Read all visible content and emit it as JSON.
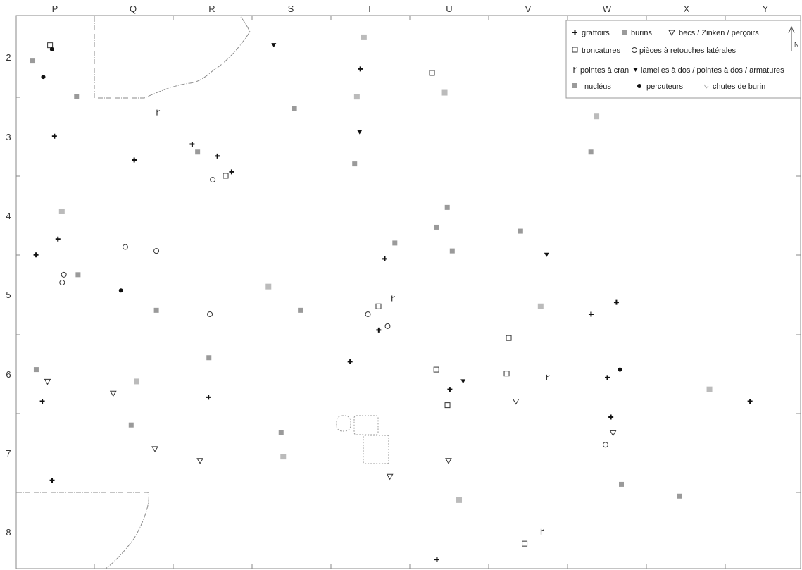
{
  "columns": [
    "P",
    "Q",
    "R",
    "S",
    "T",
    "U",
    "V",
    "W",
    "X",
    "Y"
  ],
  "rows": [
    "2",
    "3",
    "4",
    "5",
    "6",
    "7",
    "8"
  ],
  "colors": {
    "dark": "#111111",
    "gray": "#9a9a9a",
    "light": "#bbbbbb",
    "line": "#8a8a8a"
  },
  "legend": {
    "grattoirs": "grattoirs",
    "burins": "burins",
    "becs": "becs / Zinken / perçoirs",
    "troncatures": "troncatures",
    "retouches": "pièces à retouches latérales",
    "pointes": "pointes à cran",
    "lamelles": "lamelles à dos / pointes à dos  / armatures",
    "nucleus": "nucléus",
    "percuteurs": "percuteurs",
    "chutes": "chutes de burin",
    "north": "N"
  },
  "artifacts": [
    {
      "type": "grattoir",
      "col": "P",
      "row": 3.0
    },
    {
      "type": "grattoir",
      "col": "P",
      "row": 4.3
    },
    {
      "type": "grattoir",
      "col": "P",
      "row": 4.5
    },
    {
      "type": "grattoir",
      "col": "P",
      "row": 6.35
    },
    {
      "type": "grattoir",
      "col": "P",
      "row": 7.35
    },
    {
      "type": "grattoir",
      "col": "Q",
      "row": 3.3
    },
    {
      "type": "grattoir",
      "col": "R",
      "row": 3.1
    },
    {
      "type": "grattoir",
      "col": "R",
      "row": 3.45
    },
    {
      "type": "grattoir",
      "col": "R",
      "row": 3.25
    },
    {
      "type": "grattoir",
      "col": "R",
      "row": 6.3
    },
    {
      "type": "grattoir",
      "col": "T",
      "row": 2.15
    },
    {
      "type": "grattoir",
      "col": "T",
      "row": 4.55
    },
    {
      "type": "grattoir",
      "col": "T",
      "row": 5.45
    },
    {
      "type": "grattoir",
      "col": "T",
      "row": 5.85
    },
    {
      "type": "grattoir",
      "col": "U",
      "row": 6.2
    },
    {
      "type": "grattoir",
      "col": "U",
      "row": 8.35
    },
    {
      "type": "grattoir",
      "col": "W",
      "row": 5.1
    },
    {
      "type": "grattoir",
      "col": "W",
      "row": 5.25
    },
    {
      "type": "grattoir",
      "col": "W",
      "row": 6.55
    },
    {
      "type": "grattoir",
      "col": "W",
      "row": 6.05
    },
    {
      "type": "grattoir",
      "col": "Y",
      "row": 6.35
    },
    {
      "type": "burin",
      "col": "P",
      "row": 2.05
    },
    {
      "type": "burin",
      "col": "P",
      "row": 2.5
    },
    {
      "type": "burin",
      "col": "P",
      "row": 4.75
    },
    {
      "type": "burin",
      "col": "P",
      "row": 5.95
    },
    {
      "type": "burin",
      "col": "Q",
      "row": 6.65
    },
    {
      "type": "burin",
      "col": "Q",
      "row": 5.2
    },
    {
      "type": "burin",
      "col": "R",
      "row": 3.2
    },
    {
      "type": "burin",
      "col": "R",
      "row": 5.8
    },
    {
      "type": "burin",
      "col": "S",
      "row": 2.65
    },
    {
      "type": "burin",
      "col": "S",
      "row": 5.2
    },
    {
      "type": "burin",
      "col": "S",
      "row": 6.75
    },
    {
      "type": "burin",
      "col": "T",
      "row": 3.35
    },
    {
      "type": "burin",
      "col": "T",
      "row": 4.35
    },
    {
      "type": "burin",
      "col": "U",
      "row": 3.9
    },
    {
      "type": "burin",
      "col": "U",
      "row": 4.15
    },
    {
      "type": "burin",
      "col": "U",
      "row": 4.45
    },
    {
      "type": "burin",
      "col": "V",
      "row": 4.2
    },
    {
      "type": "burin",
      "col": "W",
      "row": 3.2
    },
    {
      "type": "burin",
      "col": "W",
      "row": 7.4
    },
    {
      "type": "burin",
      "col": "X",
      "row": 7.55
    },
    {
      "type": "becs",
      "col": "P",
      "row": 6.1
    },
    {
      "type": "becs",
      "col": "Q",
      "row": 6.25
    },
    {
      "type": "becs",
      "col": "Q",
      "row": 6.95
    },
    {
      "type": "becs",
      "col": "R",
      "row": 7.1
    },
    {
      "type": "becs",
      "col": "T",
      "row": 7.3
    },
    {
      "type": "becs",
      "col": "U",
      "row": 7.1
    },
    {
      "type": "becs",
      "col": "V",
      "row": 6.35
    },
    {
      "type": "becs",
      "col": "W",
      "row": 6.75
    },
    {
      "type": "troncature",
      "col": "P",
      "row": 1.85
    },
    {
      "type": "troncature",
      "col": "R",
      "row": 3.5
    },
    {
      "type": "troncature",
      "col": "T",
      "row": 5.15
    },
    {
      "type": "troncature",
      "col": "U",
      "row": 2.2
    },
    {
      "type": "troncature",
      "col": "U",
      "row": 5.95
    },
    {
      "type": "troncature",
      "col": "U",
      "row": 6.4
    },
    {
      "type": "troncature",
      "col": "V",
      "row": 5.55
    },
    {
      "type": "troncature",
      "col": "V",
      "row": 6.0
    },
    {
      "type": "troncature",
      "col": "V",
      "row": 8.15
    },
    {
      "type": "retouche",
      "col": "P",
      "row": 4.75
    },
    {
      "type": "retouche",
      "col": "P",
      "row": 4.85
    },
    {
      "type": "retouche",
      "col": "Q",
      "row": 4.45
    },
    {
      "type": "retouche",
      "col": "Q",
      "row": 4.4
    },
    {
      "type": "retouche",
      "col": "R",
      "row": 5.25
    },
    {
      "type": "retouche",
      "col": "R",
      "row": 3.55
    },
    {
      "type": "retouche",
      "col": "T",
      "row": 5.25
    },
    {
      "type": "retouche",
      "col": "T",
      "row": 5.4
    },
    {
      "type": "retouche",
      "col": "W",
      "row": 6.9
    },
    {
      "type": "percuteur",
      "col": "P",
      "row": 1.9
    },
    {
      "type": "percuteur",
      "col": "P",
      "row": 2.25
    },
    {
      "type": "percuteur",
      "col": "Q",
      "row": 4.95
    },
    {
      "type": "percuteur",
      "col": "W",
      "row": 5.95
    },
    {
      "type": "lamelle",
      "col": "S",
      "row": 1.85
    },
    {
      "type": "lamelle",
      "col": "T",
      "row": 2.95
    },
    {
      "type": "lamelle",
      "col": "U",
      "row": 6.1
    },
    {
      "type": "lamelle",
      "col": "V",
      "row": 4.5
    },
    {
      "type": "pointe",
      "col": "Q",
      "row": 2.7
    },
    {
      "type": "pointe",
      "col": "T",
      "row": 5.05
    },
    {
      "type": "pointe",
      "col": "V",
      "row": 6.05
    },
    {
      "type": "pointe",
      "col": "V",
      "row": 8.0
    },
    {
      "type": "nucleus",
      "col": "P",
      "row": 3.95
    },
    {
      "type": "nucleus",
      "col": "Q",
      "row": 6.1
    },
    {
      "type": "nucleus",
      "col": "S",
      "row": 4.9
    },
    {
      "type": "nucleus",
      "col": "S",
      "row": 7.05
    },
    {
      "type": "nucleus",
      "col": "T",
      "row": 1.75
    },
    {
      "type": "nucleus",
      "col": "T",
      "row": 2.5
    },
    {
      "type": "nucleus",
      "col": "U",
      "row": 2.45
    },
    {
      "type": "nucleus",
      "col": "U",
      "row": 7.6
    },
    {
      "type": "nucleus",
      "col": "V",
      "row": 5.15
    },
    {
      "type": "nucleus",
      "col": "W",
      "row": 2.75
    },
    {
      "type": "nucleus",
      "col": "X",
      "row": 6.2
    }
  ]
}
